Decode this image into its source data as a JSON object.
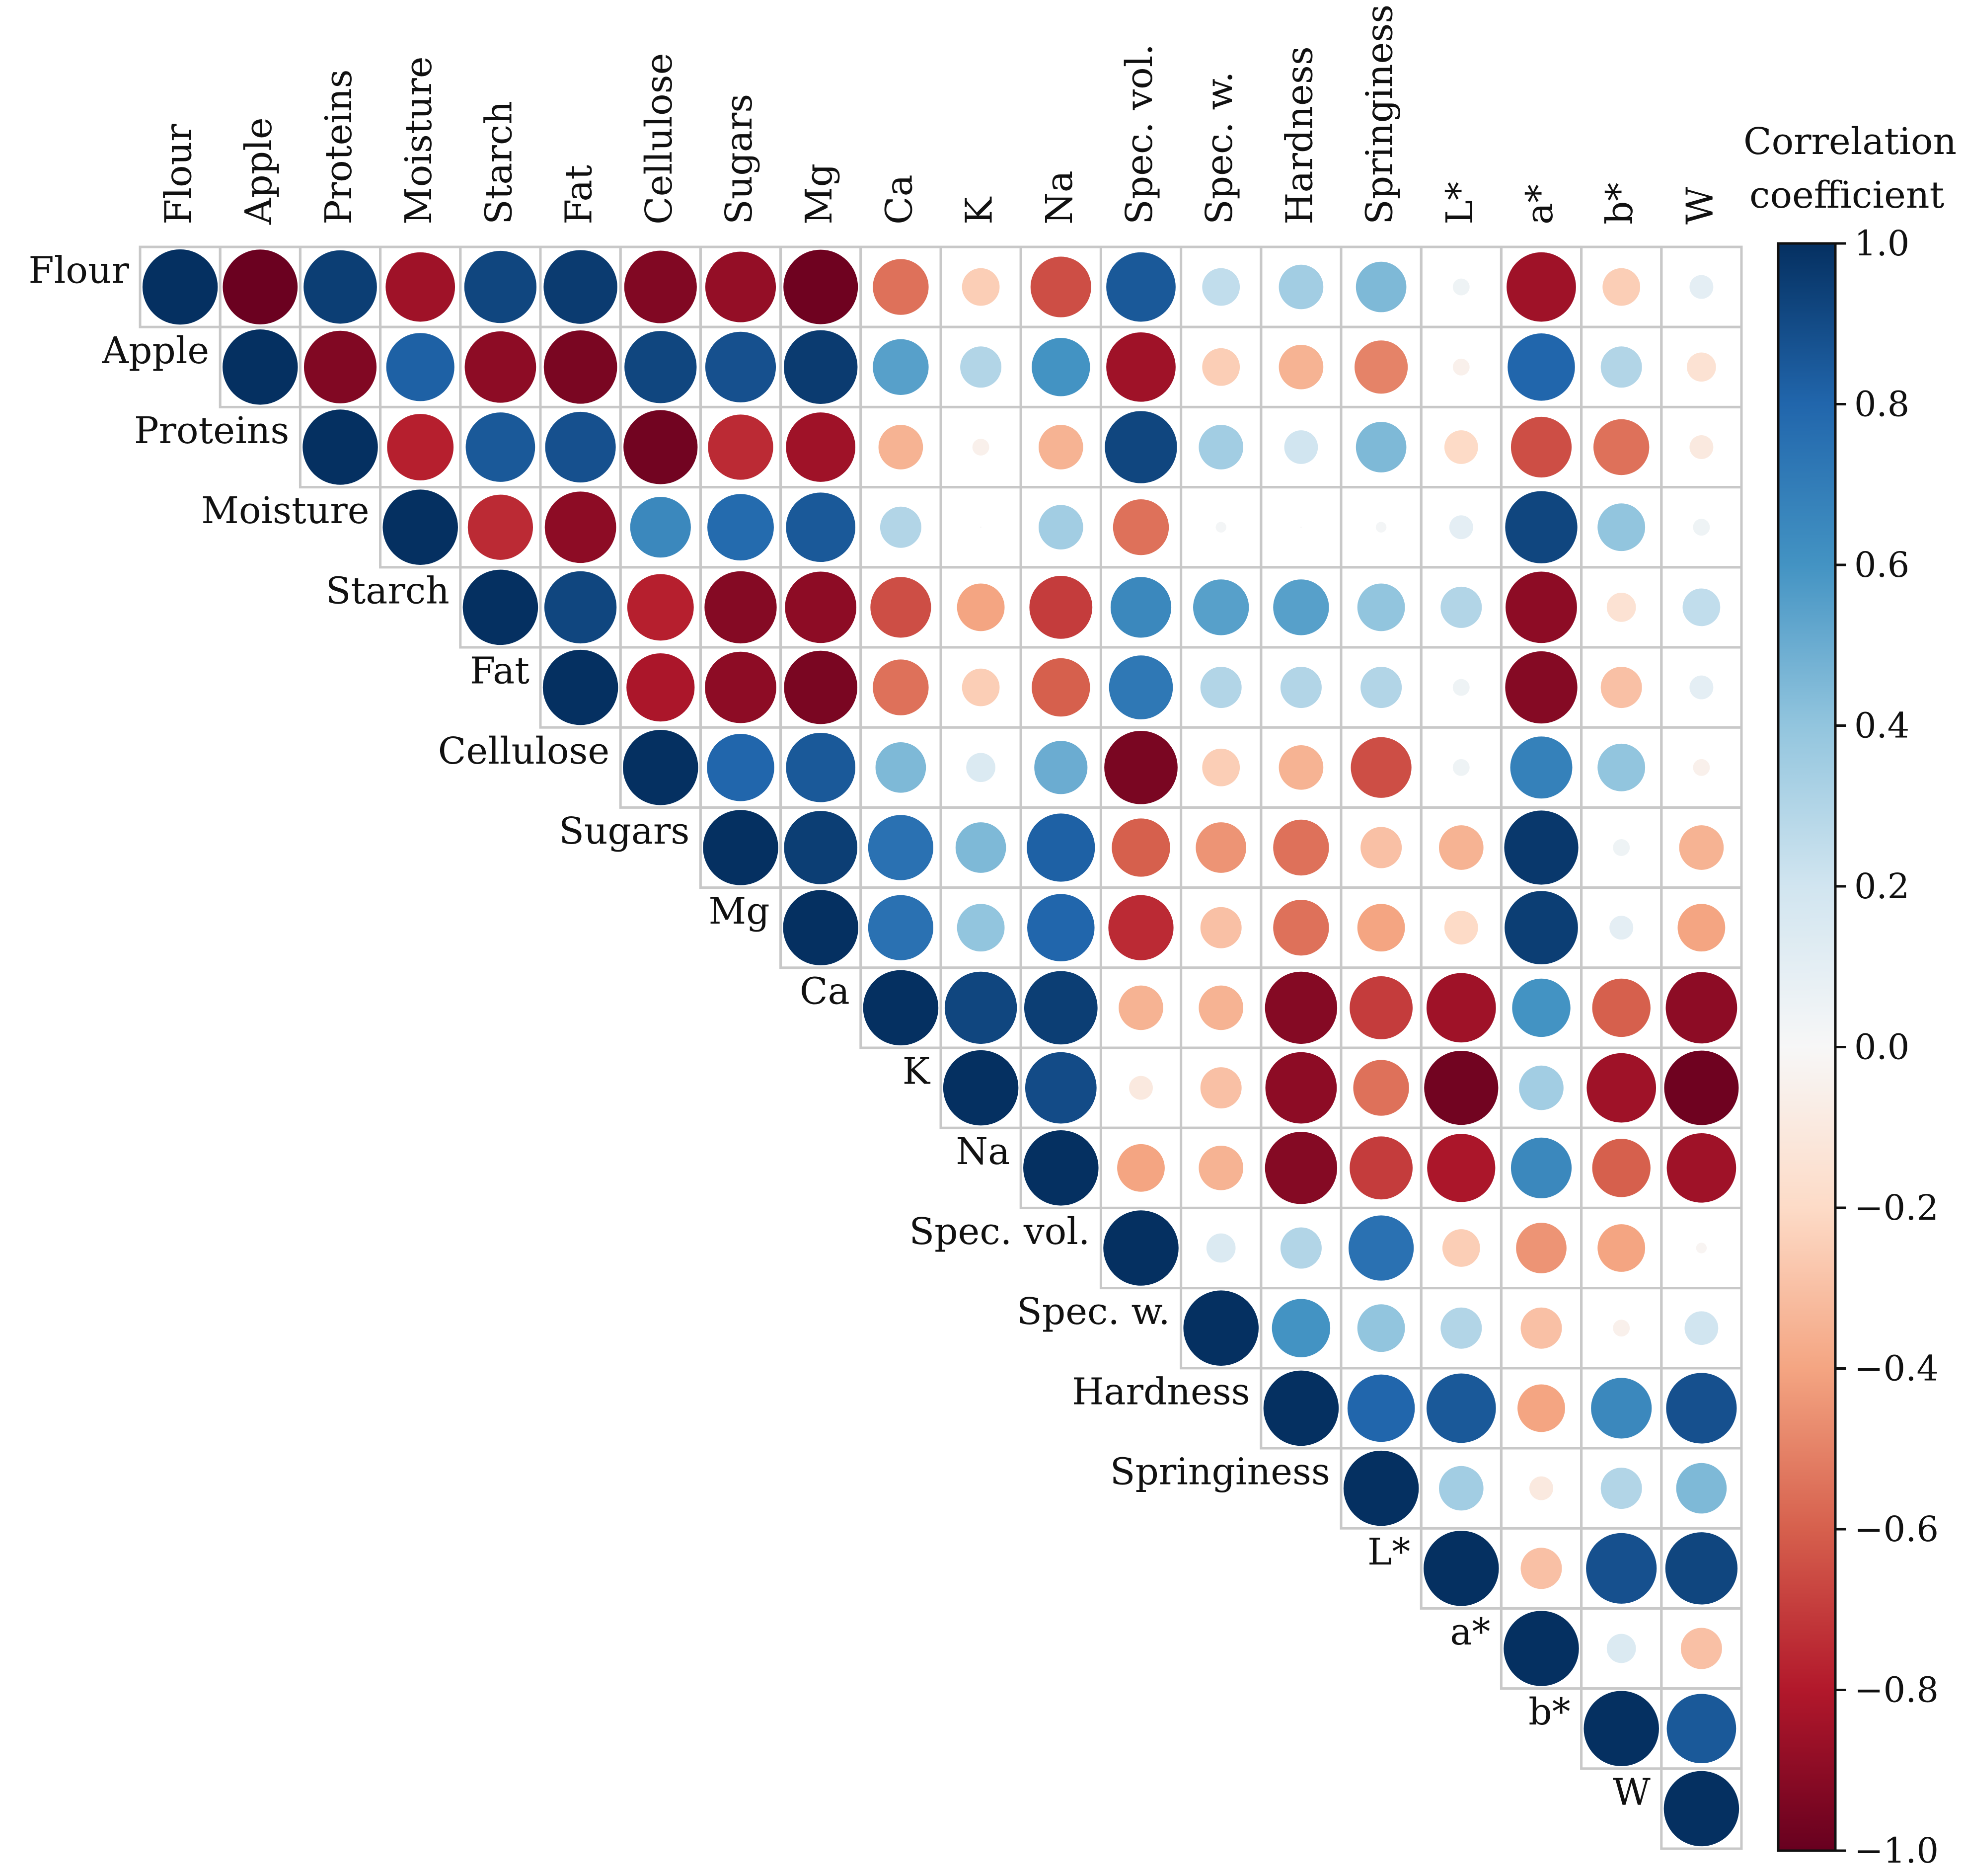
{
  "chart_data": {
    "type": "heatmap",
    "style": "circle-correlogram-upper-triangle",
    "variables": [
      "Flour",
      "Apple",
      "Proteins",
      "Moisture",
      "Starch",
      "Fat",
      "Cellulose",
      "Sugars",
      "Mg",
      "Ca",
      "K",
      "Na",
      "Spec. vol.",
      "Spec. w.",
      "Hardness",
      "Springiness",
      "L*",
      "a*",
      "b*",
      "W"
    ],
    "matrix": [
      [
        1.0,
        -0.99,
        0.95,
        -0.85,
        0.92,
        0.96,
        -0.93,
        -0.88,
        -0.98,
        -0.55,
        -0.25,
        -0.65,
        0.85,
        0.25,
        0.35,
        0.45,
        0.05,
        -0.85,
        -0.25,
        0.1
      ],
      [
        null,
        1.0,
        -0.93,
        0.82,
        -0.9,
        -0.95,
        0.92,
        0.88,
        0.96,
        0.55,
        0.3,
        0.6,
        -0.85,
        -0.25,
        -0.35,
        -0.5,
        -0.05,
        0.8,
        0.3,
        -0.15
      ],
      [
        null,
        null,
        1.0,
        -0.78,
        0.85,
        0.88,
        -0.97,
        -0.75,
        -0.85,
        -0.35,
        -0.05,
        -0.35,
        0.92,
        0.35,
        0.2,
        0.45,
        -0.2,
        -0.65,
        -0.55,
        -0.1
      ],
      [
        null,
        null,
        null,
        1.0,
        -0.75,
        -0.9,
        0.65,
        0.78,
        0.85,
        0.3,
        0.0,
        0.35,
        -0.55,
        0.02,
        0.0,
        0.02,
        0.1,
        0.92,
        0.4,
        0.05
      ],
      [
        null,
        null,
        null,
        null,
        1.0,
        0.92,
        -0.78,
        -0.92,
        -0.9,
        -0.65,
        -0.4,
        -0.7,
        0.65,
        0.55,
        0.55,
        0.4,
        0.3,
        -0.9,
        -0.15,
        0.25
      ],
      [
        null,
        null,
        null,
        null,
        null,
        1.0,
        -0.82,
        -0.9,
        -0.95,
        -0.55,
        -0.25,
        -0.6,
        0.72,
        0.3,
        0.3,
        0.3,
        0.05,
        -0.92,
        -0.3,
        0.1
      ],
      [
        null,
        null,
        null,
        null,
        null,
        null,
        1.0,
        0.8,
        0.85,
        0.45,
        0.15,
        0.5,
        -0.95,
        -0.25,
        -0.35,
        -0.65,
        0.05,
        0.68,
        0.4,
        -0.05
      ],
      [
        null,
        null,
        null,
        null,
        null,
        null,
        null,
        1.0,
        0.95,
        0.75,
        0.45,
        0.82,
        -0.6,
        -0.45,
        -0.55,
        -0.3,
        -0.35,
        0.97,
        0.05,
        -0.35
      ],
      [
        null,
        null,
        null,
        null,
        null,
        null,
        null,
        null,
        1.0,
        0.75,
        0.4,
        0.8,
        -0.75,
        -0.3,
        -0.55,
        -0.4,
        -0.2,
        0.95,
        0.1,
        -0.4
      ],
      [
        null,
        null,
        null,
        null,
        null,
        null,
        null,
        null,
        null,
        1.0,
        0.92,
        0.95,
        -0.35,
        -0.35,
        -0.92,
        -0.7,
        -0.85,
        0.6,
        -0.6,
        -0.9
      ],
      [
        null,
        null,
        null,
        null,
        null,
        null,
        null,
        null,
        null,
        null,
        1.0,
        0.9,
        -0.1,
        -0.3,
        -0.9,
        -0.55,
        -0.97,
        0.35,
        -0.85,
        -0.98
      ],
      [
        null,
        null,
        null,
        null,
        null,
        null,
        null,
        null,
        null,
        null,
        null,
        1.0,
        -0.4,
        -0.35,
        -0.92,
        -0.7,
        -0.82,
        0.65,
        -0.6,
        -0.85
      ],
      [
        null,
        null,
        null,
        null,
        null,
        null,
        null,
        null,
        null,
        null,
        null,
        null,
        1.0,
        0.15,
        0.3,
        0.75,
        -0.25,
        -0.45,
        -0.4,
        -0.02
      ],
      [
        null,
        null,
        null,
        null,
        null,
        null,
        null,
        null,
        null,
        null,
        null,
        null,
        null,
        1.0,
        0.6,
        0.4,
        0.3,
        -0.3,
        -0.05,
        0.2
      ],
      [
        null,
        null,
        null,
        null,
        null,
        null,
        null,
        null,
        null,
        null,
        null,
        null,
        null,
        null,
        1.0,
        0.8,
        0.85,
        -0.4,
        0.65,
        0.88
      ],
      [
        null,
        null,
        null,
        null,
        null,
        null,
        null,
        null,
        null,
        null,
        null,
        null,
        null,
        null,
        null,
        1.0,
        0.35,
        -0.1,
        0.3,
        0.45
      ],
      [
        null,
        null,
        null,
        null,
        null,
        null,
        null,
        null,
        null,
        null,
        null,
        null,
        null,
        null,
        null,
        null,
        1.0,
        -0.3,
        0.88,
        0.92
      ],
      [
        null,
        null,
        null,
        null,
        null,
        null,
        null,
        null,
        null,
        null,
        null,
        null,
        null,
        null,
        null,
        null,
        null,
        1.0,
        0.15,
        -0.3
      ],
      [
        null,
        null,
        null,
        null,
        null,
        null,
        null,
        null,
        null,
        null,
        null,
        null,
        null,
        null,
        null,
        null,
        null,
        null,
        1.0,
        0.85
      ],
      [
        null,
        null,
        null,
        null,
        null,
        null,
        null,
        null,
        null,
        null,
        null,
        null,
        null,
        null,
        null,
        null,
        null,
        null,
        null,
        1.0
      ]
    ],
    "colorbar": {
      "title_line1": "Correlation",
      "title_line2": "coefficient",
      "range": [
        -1.0,
        1.0
      ],
      "ticks": [
        1.0,
        0.8,
        0.6,
        0.4,
        0.2,
        0.0,
        -0.2,
        -0.4,
        -0.6,
        -0.8,
        -1.0
      ],
      "tick_labels": [
        "1.0",
        "0.8",
        "0.6",
        "0.4",
        "0.2",
        "0.0",
        "−0.2",
        "−0.4",
        "−0.6",
        "−0.8",
        "−1.0"
      ],
      "placement": "right"
    },
    "colors": {
      "negative_strong": "#67001f",
      "negative_mid": "#d6604d",
      "neutral": "#f7f7f7",
      "positive_mid": "#4393c3",
      "positive_strong": "#053061",
      "cell_border": "#c8c8c8"
    }
  }
}
